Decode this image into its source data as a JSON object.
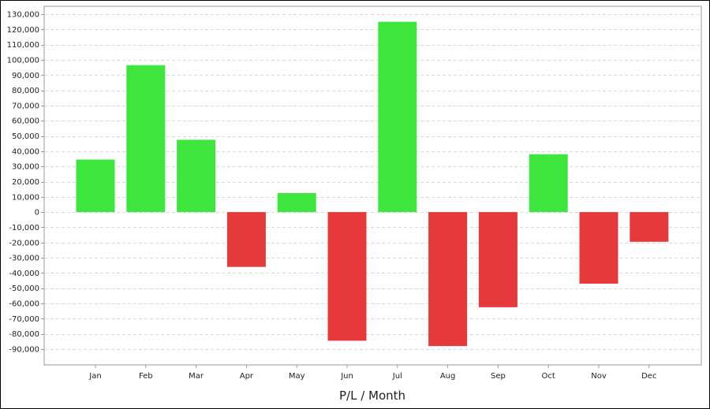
{
  "chart_data": {
    "type": "bar",
    "title": "",
    "xlabel": "P/L / Month",
    "ylabel": "",
    "categories": [
      "Jan",
      "Feb",
      "Mar",
      "Apr",
      "May",
      "Jun",
      "Jul",
      "Aug",
      "Sep",
      "Oct",
      "Nov",
      "Dec"
    ],
    "values": [
      34500,
      96500,
      47500,
      -36000,
      12500,
      -84500,
      125000,
      -88000,
      -62500,
      38000,
      -47000,
      -19500
    ],
    "ylim": [
      -95000,
      130000
    ],
    "yticks": [
      -90000,
      -80000,
      -70000,
      -60000,
      -50000,
      -40000,
      -30000,
      -20000,
      -10000,
      0,
      10000,
      20000,
      30000,
      40000,
      50000,
      60000,
      70000,
      80000,
      90000,
      100000,
      110000,
      120000,
      130000
    ],
    "grid": true,
    "legend": "none",
    "colors": {
      "positive": "#3ee63e",
      "negative": "#e6393b",
      "grid": "#d9d9d9",
      "axis": "#999999"
    }
  }
}
